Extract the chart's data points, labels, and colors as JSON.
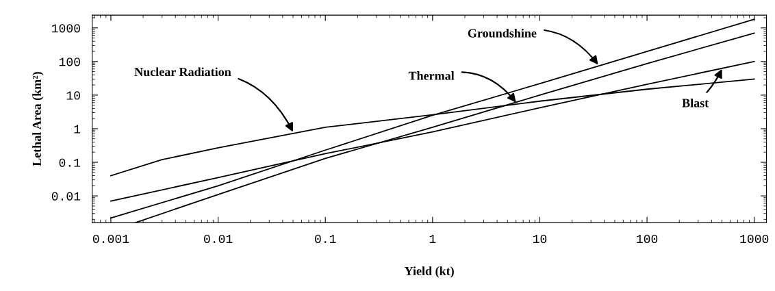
{
  "chart_data": {
    "type": "line",
    "xlabel": "Yield (kt)",
    "ylabel": "Lethal Area (km²)",
    "log": "xy",
    "grid": false,
    "marker": "none",
    "line_style": "solid",
    "xlim": [
      0.00067,
      1300
    ],
    "ylim": [
      0.0016,
      2400
    ],
    "xticks": [
      0.001,
      0.01,
      0.1,
      1,
      10,
      100,
      1000
    ],
    "yticks": [
      0.01,
      0.1,
      1,
      10,
      100,
      1000
    ],
    "series": [
      {
        "color": "#000000",
        "x": [
          0.001,
          0.003,
          0.01,
          0.1,
          1,
          10,
          100,
          1000
        ],
        "values": [
          0.04,
          0.12,
          0.27,
          1.1,
          2.6,
          6.6,
          15,
          30
        ]
      },
      {
        "color": "#000000",
        "x": [
          0.001,
          0.01,
          0.1,
          1,
          10,
          100,
          1000
        ],
        "values": [
          0.0022,
          0.02,
          0.23,
          2.5,
          22,
          200,
          1800
        ]
      },
      {
        "color": "#000000",
        "x": [
          0.0017,
          0.01,
          0.1,
          1,
          10,
          100,
          1000
        ],
        "values": [
          0.0016,
          0.011,
          0.13,
          1.1,
          10,
          87,
          700
        ]
      },
      {
        "color": "#000000",
        "x": [
          0.001,
          0.01,
          0.1,
          1,
          10,
          100,
          1000
        ],
        "values": [
          0.007,
          0.035,
          0.18,
          0.8,
          4.2,
          21,
          100
        ]
      }
    ],
    "annotations": [
      {
        "text": "Nuclear Radiation",
        "x": 0.05,
        "y": 0.8
      },
      {
        "text": "Groundshine",
        "x": 35,
        "y": 80
      },
      {
        "text": "Thermal",
        "x": 6,
        "y": 6
      },
      {
        "text": "Blast",
        "x": 500,
        "y": 60
      }
    ]
  }
}
